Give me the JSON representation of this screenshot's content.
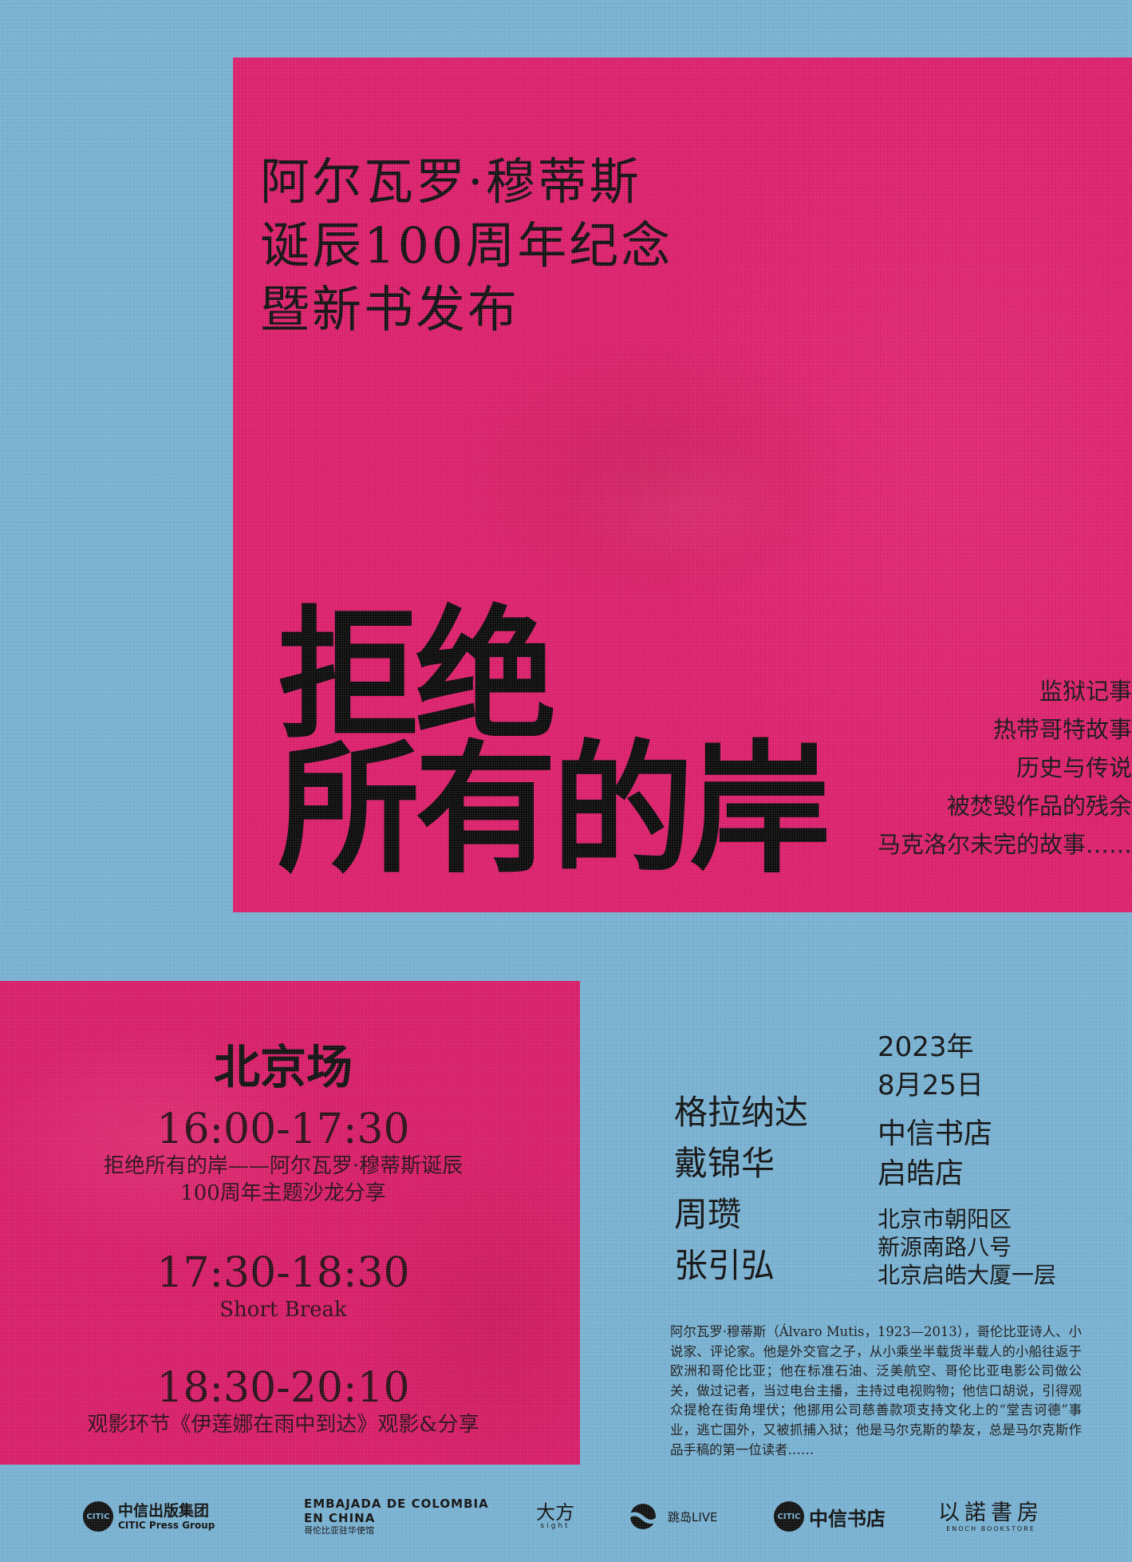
{
  "poster": {
    "title_lines": [
      "阿尔瓦罗·穆蒂斯",
      "诞辰100周年纪念",
      "暨新书发布"
    ],
    "book_title_lines": [
      "拒绝",
      "所有的岸"
    ],
    "tags": [
      "监狱记事",
      "热带哥特故事",
      "历史与传说",
      "被焚毁作品的残余",
      "马克洛尔未完的故事……"
    ],
    "colors": {
      "background": "#78b1d2",
      "accent": "#dc1f6b",
      "text": "#111111"
    }
  },
  "schedule": {
    "venue": "北京场",
    "slots": [
      {
        "time": "16:00-17:30",
        "desc_lines": [
          "拒绝所有的岸——阿尔瓦罗·穆蒂斯诞辰",
          "100周年主题沙龙分享"
        ]
      },
      {
        "time": "17:30-18:30",
        "desc_lines": [
          "Short Break"
        ]
      },
      {
        "time": "18:30-20:10",
        "desc_lines": [
          "观影环节《伊莲娜在雨中到达》观影&分享"
        ]
      }
    ]
  },
  "guests": [
    "格拉纳达",
    "戴锦华",
    "周瓒",
    "张引弘"
  ],
  "event": {
    "year": "2023年",
    "date": "8月25日",
    "venue_lines": [
      "中信书店",
      "启皓店"
    ],
    "address_lines": [
      "北京市朝阳区",
      "新源南路八号",
      "北京启皓大厦一层"
    ]
  },
  "bio": "阿尔瓦罗·穆蒂斯（Álvaro Mutis，1923—2013），哥伦比亚诗人、小说家、评论家。他是外交官之子，从小乘坐半载货半载人的小船往返于欧洲和哥伦比亚；他在标准石油、泛美航空、哥伦比亚电影公司做公关，做过记者，当过电台主播，主持过电视购物；他信口胡说，引得观众提枪在街角埋伏；他挪用公司慈善款项支持文化上的“堂吉诃德”事业，逃亡国外，又被抓捕入狱；他是马尔克斯的挚友，总是马尔克斯作品手稿的第一位读者……",
  "logos": {
    "citic_press_zh": "中信出版集团",
    "citic_press_en": "CITIC Press Group",
    "citic_mark": "CITIC",
    "colombia_line1": "EMBAJADA DE COLOMBIA",
    "colombia_line2": "EN CHINA",
    "colombia_line3": "哥伦比亚驻华使馆",
    "dafang_zh": "大方",
    "dafang_en": "sight",
    "live": "跳岛LIVE",
    "bookstore": "中信书店",
    "enoch_zh": "以諾書房",
    "enoch_en": "ENOCH BOOKSTORE"
  }
}
